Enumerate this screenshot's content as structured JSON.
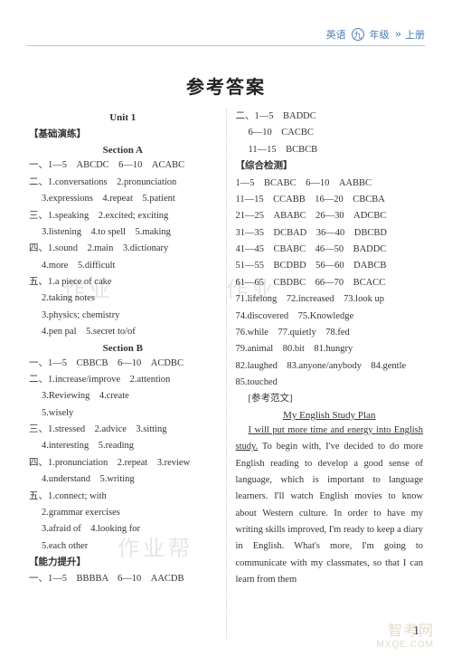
{
  "header": {
    "subject": "英语",
    "grade_circle": "九",
    "grade_suffix": "年级",
    "volume": "上册"
  },
  "main_title": "参考答案",
  "watermarks": {
    "wm1": "作业",
    "wm2": "作业",
    "wm3": "作业帮",
    "brand_cn": "智考网",
    "brand_en": "MXQE.COM"
  },
  "page_number": "1",
  "left": {
    "unit": "Unit 1",
    "basic_label": "【基础演练】",
    "sectionA": "Section A",
    "a1": "一、1—5　ABCDC　6—10　ACABC",
    "a2_1": "二、1.conversations　2.pronunciation",
    "a2_2": "3.expressions　4.repeat　5.patient",
    "a3_1": "三、1.speaking　2.excited; exciting",
    "a3_2": "3.listening　4.to spell　5.making",
    "a4_1": "四、1.sound　2.main　3.dictionary",
    "a4_2": "4.more　5.difficult",
    "a5_1": "五、1.a piece of cake",
    "a5_2": "2.taking notes",
    "a5_3": "3.physics; chemistry",
    "a5_4": "4.pen pal　5.secret to/of",
    "sectionB": "Section B",
    "b1": "一、1—5　CBBCB　6—10　ACDBC",
    "b2_1": "二、1.increase/improve　2.attention",
    "b2_2": "3.Reviewing　4.create",
    "b2_3": "5.wisely",
    "b3_1": "三、1.stressed　2.advice　3.sitting",
    "b3_2": "4.interesting　5.reading",
    "b4_1": "四、1.pronunciation　2.repeat　3.review",
    "b4_2": "4.understand　5.writing",
    "b5_1": "五、1.connect; with",
    "b5_2": "2.grammar exercises",
    "b5_3": "3.afraid of　4.looking for",
    "b5_4": "5.each other",
    "enhance_label": "【能力提升】",
    "e1": "一、1—5　BBBBA　6—10　AACDB"
  },
  "right": {
    "r1": "二、1—5　BADDC",
    "r2": "6—10　CACBC",
    "r3": "11—15　BCBCB",
    "comp_label": "【综合检测】",
    "c1": "1—5　BCABC　6—10　AABBC",
    "c2": "11—15　CCABB　16—20　CBCBA",
    "c3": "21—25　ABABC　26—30　ADCBC",
    "c4": "31—35　DCBAD　36—40　DBCBD",
    "c5": "41—45　CBABC　46—50　BADDC",
    "c6": "51—55　BCDBD　56—60　DABCB",
    "c7": "61—65　CBDBC　66—70　BCACC",
    "c8": "71.lifelong　72.increased　73.look up",
    "c9": "74.discovered　75.Knowledge",
    "c10": "76.while　77.quietly　78.fed",
    "c11": "79.animal　80.bit　81.hungry",
    "c12": "82.laughed　83.anyone/anybody　84.gentle",
    "c13": "85.touched",
    "sample_label": "[参考范文]",
    "essay_title": "My English Study Plan",
    "essay_lead": "I will put more time and energy into English study.",
    "essay_body": " To begin with, I've decided to do more English reading to develop a good sense of language, which is important to language learners. I'll watch English movies to know about Western culture. In order to have my writing skills improved, I'm ready to keep a diary in English. What's more, I'm going to communicate with my classmates, so that I can learn from them"
  }
}
